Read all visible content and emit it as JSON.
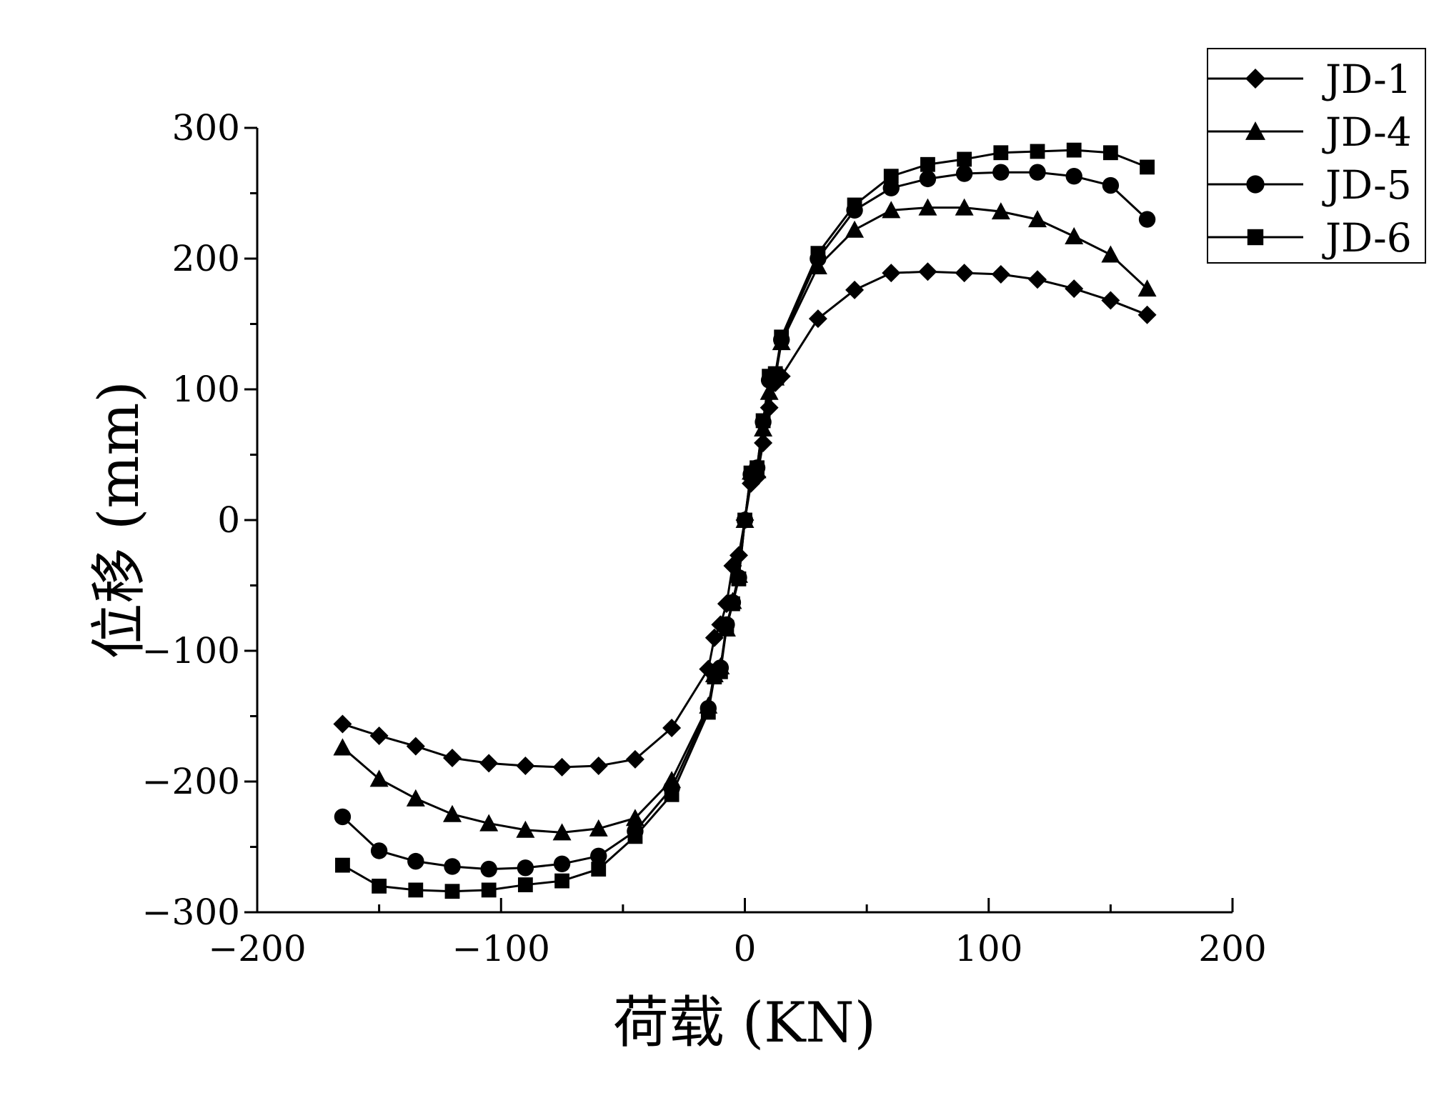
{
  "chart_data": {
    "type": "line",
    "xlabel": "荷载 (KN)",
    "ylabel": "位移 (mm)",
    "xlim": [
      -200,
      200
    ],
    "ylim": [
      -300,
      300
    ],
    "xticks": [
      -200,
      -100,
      0,
      100,
      200
    ],
    "yticks": [
      -300,
      -200,
      -100,
      0,
      100,
      200,
      300
    ],
    "xtick_labels": [
      "−200",
      "−100",
      "0",
      "100",
      "200"
    ],
    "ytick_labels": [
      "−300",
      "−200",
      "−100",
      "0",
      "100",
      "200",
      "300"
    ],
    "grid": false,
    "legend_position": "top-right",
    "series": [
      {
        "name": "JD-1",
        "marker": "diamond",
        "color": "#000000",
        "x": [
          -165,
          -150,
          -135,
          -120,
          -105,
          -90,
          -75,
          -60,
          -45,
          -30,
          -15,
          -12.5,
          -10,
          -7.5,
          -5,
          -2.5,
          0,
          2.5,
          5,
          7.5,
          10,
          12.5,
          15,
          30,
          45,
          60,
          75,
          90,
          105,
          120,
          135,
          150,
          165
        ],
        "y": [
          -156,
          -165,
          -173,
          -182,
          -186,
          -188,
          -189,
          -188,
          -183,
          -159,
          -114,
          -90,
          -80,
          -64,
          -35,
          -27,
          0,
          28,
          33,
          59,
          86,
          105,
          110,
          154,
          176,
          189,
          190,
          189,
          188,
          184,
          177,
          168,
          157
        ]
      },
      {
        "name": "JD-4",
        "marker": "triangle",
        "color": "#000000",
        "x": [
          -165,
          -150,
          -135,
          -120,
          -105,
          -90,
          -75,
          -60,
          -45,
          -30,
          -15,
          -12.5,
          -10,
          -7.5,
          -5,
          -2.5,
          0,
          2.5,
          5,
          7.5,
          10,
          12.5,
          15,
          30,
          45,
          60,
          75,
          90,
          105,
          120,
          135,
          150,
          165
        ],
        "y": [
          -174,
          -198,
          -213,
          -225,
          -232,
          -237,
          -239,
          -236,
          -228,
          -199,
          -142,
          -118,
          -112,
          -83,
          -62,
          -42,
          0,
          37,
          38,
          70,
          98,
          109,
          136,
          194,
          222,
          237,
          239,
          239,
          236,
          230,
          217,
          203,
          177
        ]
      },
      {
        "name": "JD-5",
        "marker": "circle",
        "color": "#000000",
        "x": [
          -165,
          -150,
          -135,
          -120,
          -105,
          -90,
          -75,
          -60,
          -45,
          -30,
          -15,
          -12.5,
          -10,
          -7.5,
          -5,
          -2.5,
          0,
          2.5,
          5,
          7.5,
          10,
          12.5,
          15,
          30,
          45,
          60,
          75,
          90,
          105,
          120,
          135,
          150,
          165
        ],
        "y": [
          -227,
          -253,
          -261,
          -265,
          -267,
          -266,
          -263,
          -257,
          -238,
          -205,
          -144,
          -116,
          -113,
          -80,
          -63,
          -44,
          0,
          35,
          40,
          75,
          107,
          110,
          138,
          200,
          237,
          254,
          261,
          265,
          266,
          266,
          263,
          256,
          230
        ]
      },
      {
        "name": "JD-6",
        "marker": "square",
        "color": "#000000",
        "x": [
          -165,
          -150,
          -135,
          -120,
          -105,
          -90,
          -75,
          -60,
          -45,
          -30,
          -15,
          -12.5,
          -10,
          -7.5,
          -5,
          -2.5,
          0,
          2.5,
          5,
          7.5,
          10,
          12.5,
          15,
          30,
          45,
          60,
          75,
          90,
          105,
          120,
          135,
          150,
          165
        ],
        "y": [
          -264,
          -280,
          -283,
          -284,
          -283,
          -279,
          -276,
          -267,
          -242,
          -210,
          -147,
          -120,
          -116,
          -82,
          -64,
          -45,
          0,
          36,
          40,
          76,
          110,
          112,
          140,
          204,
          241,
          263,
          272,
          276,
          281,
          282,
          283,
          281,
          270
        ]
      }
    ]
  }
}
